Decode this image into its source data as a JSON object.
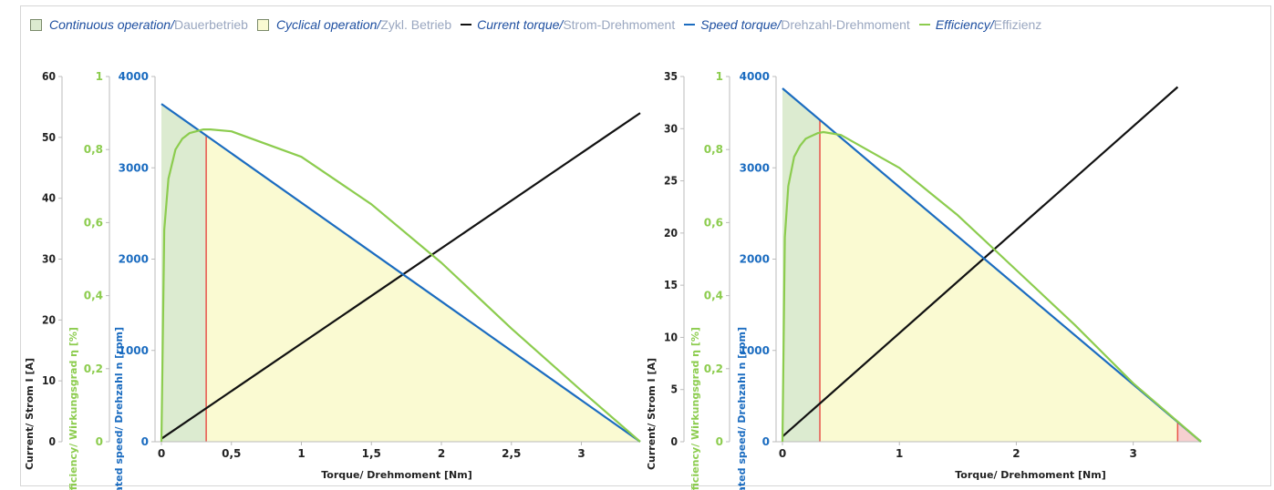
{
  "legend": {
    "items": [
      {
        "kind": "box",
        "color": "#dcebd0",
        "en": "Continuous operation/",
        "de": " Dauerbetrieb"
      },
      {
        "kind": "box",
        "color": "#fafad2",
        "en": "Cyclical operation/",
        "de": " Zykl. Betrieb"
      },
      {
        "kind": "line",
        "color": "#111111",
        "en": "Current torque/",
        "de": " Strom-Drehmoment"
      },
      {
        "kind": "line",
        "color": "#1b6cc0",
        "en": "Speed torque/",
        "de": " Drehzahl-Drehmoment"
      },
      {
        "kind": "line",
        "color": "#8ccc4e",
        "en": "Efficiency/",
        "de": " Effizienz"
      }
    ]
  },
  "colors": {
    "current": "#111111",
    "speed": "#1b6cc0",
    "efficiency": "#8ccc4e",
    "continuous_fill": "#dcebd0",
    "cyclical_fill": "#fafad2",
    "limit_line": "#e8534a",
    "overload_fill": "#f6d0d0"
  },
  "chart_data": [
    {
      "type": "line",
      "xlabel": "Torque/ Drehmoment [Nm]",
      "x_ticks": [
        "0",
        "0,5",
        "1",
        "1,5",
        "2",
        "2,5",
        "3"
      ],
      "x_tick_values": [
        0,
        0.5,
        1,
        1.5,
        2,
        2.5,
        3
      ],
      "xlim": [
        0,
        3.42
      ],
      "axes": {
        "current": {
          "label": "Current/ Strom I [A]",
          "ylim": [
            0,
            60
          ],
          "ticks": [
            "0",
            "10",
            "20",
            "30",
            "40",
            "50",
            "60"
          ]
        },
        "efficiency": {
          "label": "Efficiency/ Wirkungsgrad η [%]",
          "ylim": [
            0,
            1
          ],
          "ticks": [
            "0",
            "0,2",
            "0,4",
            "0,6",
            "0,8",
            "1"
          ]
        },
        "speed": {
          "label": "Rated speed/ Drehzahl n [rpm]",
          "ylim": [
            0,
            4000
          ],
          "ticks": [
            "0",
            "1000",
            "2000",
            "3000",
            "4000"
          ]
        }
      },
      "rated_torque": 0.32,
      "stall_torque": 3.42,
      "series": [
        {
          "key": "current",
          "x": [
            0,
            3.42
          ],
          "y": [
            0.5,
            54
          ]
        },
        {
          "key": "speed",
          "x": [
            0,
            3.42
          ],
          "y": [
            3700,
            0
          ]
        },
        {
          "key": "efficiency",
          "x": [
            0,
            0.02,
            0.05,
            0.1,
            0.15,
            0.2,
            0.3,
            0.35,
            0.5,
            1,
            1.5,
            2,
            2.5,
            3,
            3.42
          ],
          "y": [
            0,
            0.58,
            0.72,
            0.8,
            0.83,
            0.845,
            0.855,
            0.855,
            0.85,
            0.78,
            0.65,
            0.49,
            0.31,
            0.14,
            0
          ]
        }
      ]
    },
    {
      "type": "line",
      "xlabel": "Torque/ Drehmoment [Nm]",
      "x_ticks": [
        "0",
        "1",
        "2",
        "3"
      ],
      "x_tick_values": [
        0,
        1,
        2,
        3
      ],
      "xlim": [
        0,
        3.58
      ],
      "axes": {
        "current": {
          "label": "Current/ Strom I [A]",
          "ylim": [
            0,
            35
          ],
          "ticks": [
            "0",
            "5",
            "10",
            "15",
            "20",
            "25",
            "30",
            "35"
          ]
        },
        "efficiency": {
          "label": "Efficiency/ Wirkungsgrad η [%]",
          "ylim": [
            0,
            1
          ],
          "ticks": [
            "0",
            "0,2",
            "0,4",
            "0,6",
            "0,8",
            "1"
          ]
        },
        "speed": {
          "label": "Rated speed/ Drehzahl n [rpm]",
          "ylim": [
            0,
            4000
          ],
          "ticks": [
            "0",
            "1000",
            "2000",
            "3000",
            "4000"
          ]
        }
      },
      "rated_torque": 0.32,
      "limit_torque": 3.38,
      "stall_torque": 3.58,
      "series": [
        {
          "key": "current",
          "x": [
            0,
            3.38
          ],
          "y": [
            0.5,
            34
          ]
        },
        {
          "key": "speed",
          "x": [
            0,
            3.58
          ],
          "y": [
            3870,
            0
          ]
        },
        {
          "key": "efficiency",
          "x": [
            0,
            0.02,
            0.05,
            0.1,
            0.15,
            0.2,
            0.3,
            0.35,
            0.5,
            1,
            1.5,
            2,
            2.5,
            3,
            3.58
          ],
          "y": [
            0,
            0.56,
            0.7,
            0.78,
            0.81,
            0.83,
            0.845,
            0.848,
            0.84,
            0.75,
            0.62,
            0.47,
            0.32,
            0.16,
            0
          ]
        }
      ]
    }
  ]
}
